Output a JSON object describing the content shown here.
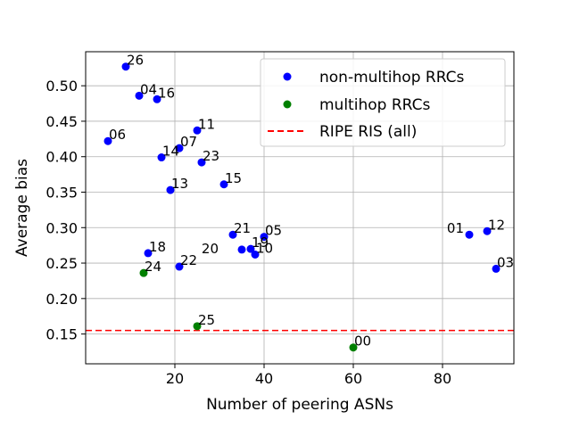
{
  "chart_data": {
    "type": "scatter",
    "title": "",
    "xlabel": "Number of peering ASNs",
    "ylabel": "Average bias",
    "xlim": [
      0,
      96
    ],
    "ylim": [
      0.108,
      0.548
    ],
    "xticks": [
      20,
      40,
      60,
      80
    ],
    "xtick_labels": [
      "20",
      "40",
      "60",
      "80"
    ],
    "yticks": [
      0.15,
      0.2,
      0.25,
      0.3,
      0.35,
      0.4,
      0.45,
      0.5
    ],
    "ytick_labels": [
      "0.15",
      "0.20",
      "0.25",
      "0.30",
      "0.35",
      "0.40",
      "0.45",
      "0.50"
    ],
    "grid": true,
    "legend_position": "top-right",
    "series": [
      {
        "name": "non-multihop RRCs",
        "color": "#0000ff",
        "points": [
          {
            "label": "26",
            "x": 9,
            "y": 0.527
          },
          {
            "label": "04",
            "x": 12,
            "y": 0.486
          },
          {
            "label": "16",
            "x": 16,
            "y": 0.481
          },
          {
            "label": "06",
            "x": 5,
            "y": 0.422
          },
          {
            "label": "11",
            "x": 25,
            "y": 0.437
          },
          {
            "label": "07",
            "x": 21,
            "y": 0.412
          },
          {
            "label": "14",
            "x": 17,
            "y": 0.399
          },
          {
            "label": "23",
            "x": 26,
            "y": 0.392
          },
          {
            "label": "13",
            "x": 19,
            "y": 0.353
          },
          {
            "label": "15",
            "x": 31,
            "y": 0.361
          },
          {
            "label": "21",
            "x": 33,
            "y": 0.29
          },
          {
            "label": "05",
            "x": 40,
            "y": 0.287
          },
          {
            "label": "19",
            "x": 37,
            "y": 0.27
          },
          {
            "label": "20",
            "x": 35,
            "y": 0.269
          },
          {
            "label": "10",
            "x": 38,
            "y": 0.262
          },
          {
            "label": "18",
            "x": 14,
            "y": 0.264
          },
          {
            "label": "22",
            "x": 21,
            "y": 0.245
          },
          {
            "label": "01",
            "x": 86,
            "y": 0.29
          },
          {
            "label": "12",
            "x": 90,
            "y": 0.295
          },
          {
            "label": "03",
            "x": 92,
            "y": 0.242
          }
        ]
      },
      {
        "name": "multihop RRCs",
        "color": "#008000",
        "points": [
          {
            "label": "24",
            "x": 13,
            "y": 0.236
          },
          {
            "label": "25",
            "x": 25,
            "y": 0.161
          },
          {
            "label": "00",
            "x": 60,
            "y": 0.131
          }
        ]
      }
    ],
    "reference_line": {
      "name": "RIPE RIS (all)",
      "y": 0.155,
      "color": "#ff0000",
      "style": "dashed"
    }
  }
}
